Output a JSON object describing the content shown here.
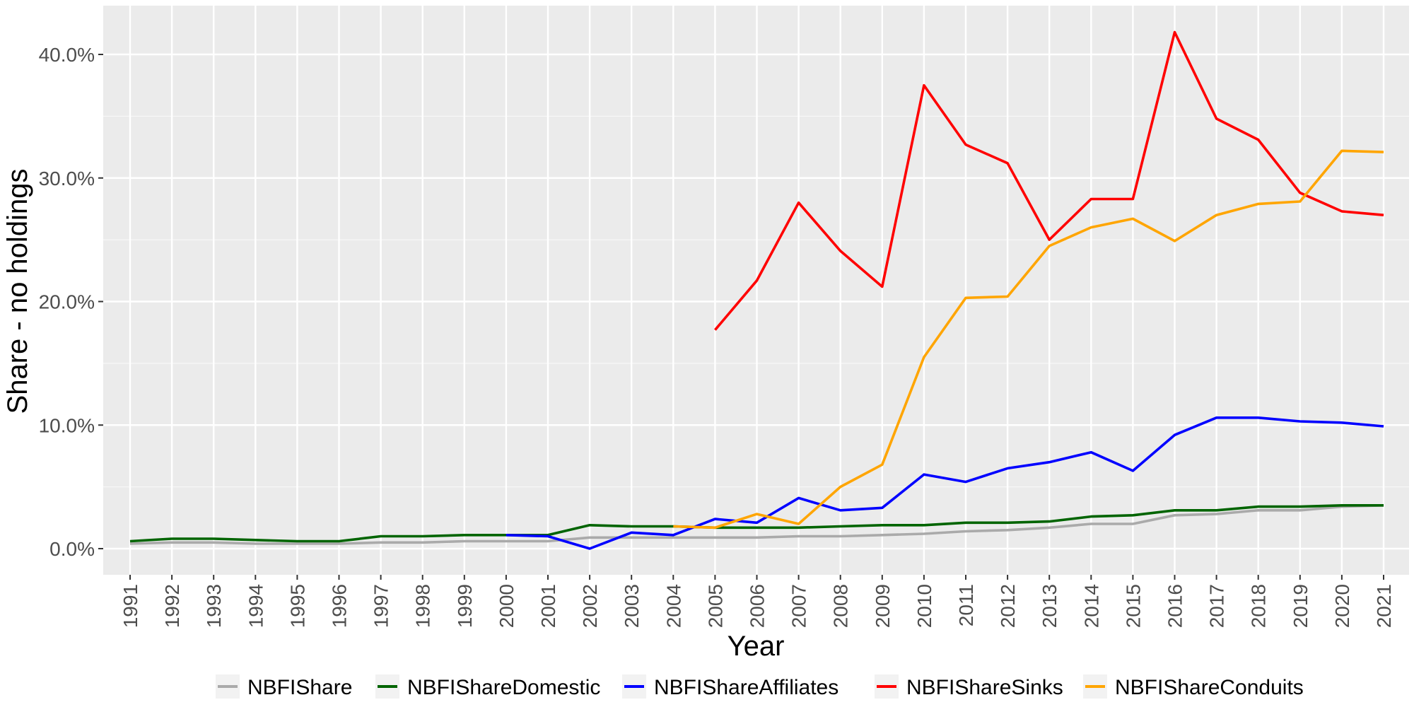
{
  "chart_data": {
    "type": "line",
    "title": "",
    "xlabel": "Year",
    "ylabel": "Share - no holdings",
    "categories": [
      "1991",
      "1992",
      "1993",
      "1994",
      "1995",
      "1996",
      "1997",
      "1998",
      "1999",
      "2000",
      "2001",
      "2002",
      "2003",
      "2004",
      "2005",
      "2006",
      "2007",
      "2008",
      "2009",
      "2010",
      "2011",
      "2012",
      "2013",
      "2014",
      "2015",
      "2016",
      "2017",
      "2018",
      "2019",
      "2020",
      "2021"
    ],
    "ylim": [
      -0.02,
      0.43
    ],
    "yticks": [
      0.0,
      0.1,
      0.2,
      0.3,
      0.4
    ],
    "ytick_labels": [
      "0.0%",
      "10.0%",
      "20.0%",
      "30.0%",
      "40.0%"
    ],
    "grid": true,
    "legend_position": "bottom",
    "series": [
      {
        "name": "NBFIShare",
        "color": "#aaaaaa",
        "values": [
          0.004,
          0.005,
          0.005,
          0.004,
          0.004,
          0.004,
          0.005,
          0.005,
          0.006,
          0.006,
          0.006,
          0.009,
          0.009,
          0.009,
          0.009,
          0.009,
          0.01,
          0.01,
          0.011,
          0.012,
          0.014,
          0.015,
          0.017,
          0.02,
          0.02,
          0.027,
          0.028,
          0.031,
          0.031,
          0.034,
          0.035
        ]
      },
      {
        "name": "NBFIShareDomestic",
        "color": "#006400",
        "values": [
          0.006,
          0.008,
          0.008,
          0.007,
          0.006,
          0.006,
          0.01,
          0.01,
          0.011,
          0.011,
          0.011,
          0.019,
          0.018,
          0.018,
          0.017,
          0.017,
          0.017,
          0.018,
          0.019,
          0.019,
          0.021,
          0.021,
          0.022,
          0.026,
          0.027,
          0.031,
          0.031,
          0.034,
          0.034,
          0.035,
          0.035
        ]
      },
      {
        "name": "NBFIShareAffiliates",
        "color": "#0000ff",
        "values": [
          null,
          null,
          null,
          null,
          null,
          null,
          null,
          null,
          null,
          0.011,
          0.01,
          0.0,
          0.013,
          0.011,
          0.024,
          0.021,
          0.041,
          0.031,
          0.033,
          0.06,
          0.054,
          0.065,
          0.07,
          0.078,
          0.063,
          0.092,
          0.106,
          0.106,
          0.103,
          0.102,
          0.099
        ]
      },
      {
        "name": "NBFIShareSinks",
        "color": "#ff0000",
        "values": [
          null,
          null,
          null,
          null,
          null,
          null,
          null,
          null,
          null,
          null,
          null,
          null,
          null,
          null,
          0.177,
          0.217,
          0.28,
          0.241,
          0.212,
          0.375,
          0.327,
          0.312,
          0.25,
          0.283,
          0.283,
          0.418,
          0.348,
          0.331,
          0.288,
          0.273,
          0.27
        ]
      },
      {
        "name": "NBFIShareConduits",
        "color": "#ffa500",
        "values": [
          null,
          null,
          null,
          null,
          null,
          null,
          null,
          null,
          null,
          null,
          null,
          null,
          null,
          0.018,
          0.017,
          0.028,
          0.02,
          0.05,
          0.068,
          0.155,
          0.203,
          0.204,
          0.245,
          0.26,
          0.267,
          0.249,
          0.27,
          0.279,
          0.281,
          0.322,
          0.321
        ]
      }
    ]
  }
}
